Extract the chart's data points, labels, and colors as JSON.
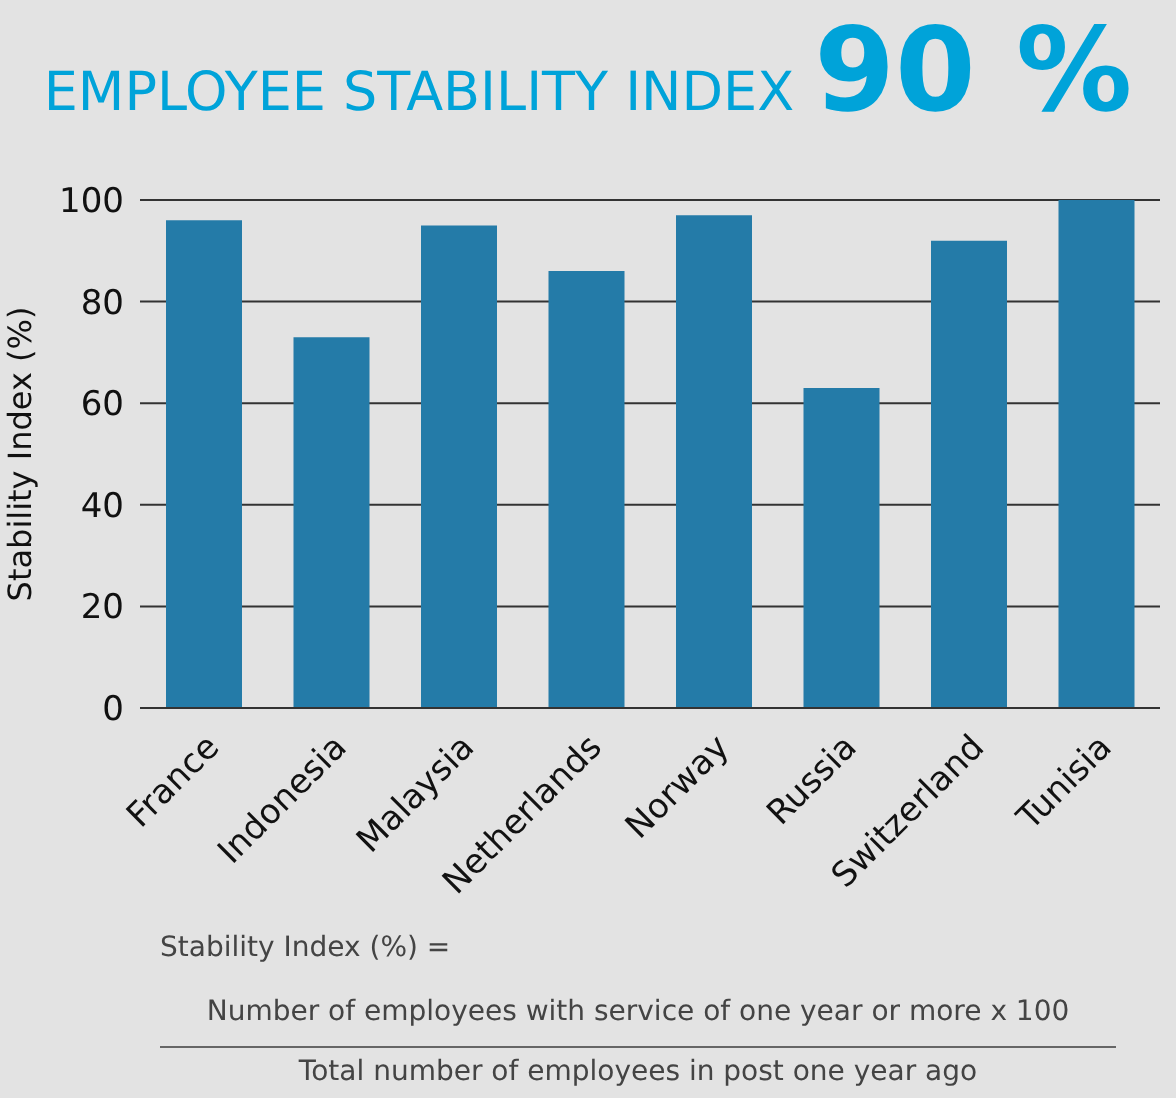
{
  "chart_data": {
    "type": "bar",
    "title": "EMPLOYEE STABILITY INDEX",
    "subtitle": "90 %",
    "ylabel": "Stability Index (%)",
    "categories": [
      "France",
      "Indonesia",
      "Malaysia",
      "Netherlands",
      "Norway",
      "Russia",
      "Switzerland",
      "Tunisia"
    ],
    "values": [
      96,
      73,
      95,
      86,
      97,
      63,
      92,
      100
    ],
    "color": "#247ba8",
    "ylim": [
      0,
      100
    ],
    "yticks": [
      0,
      20,
      40,
      60,
      80,
      100
    ],
    "grid": "y",
    "annotations": [
      "Stability Index (%) =",
      "Number of employees with service of one year or more x 100",
      "Total number of employees in post one year ago"
    ]
  }
}
